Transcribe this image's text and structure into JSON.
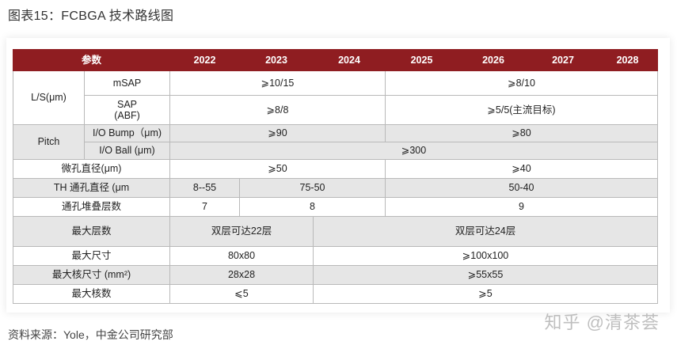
{
  "title": "图表15：FCBGA 技术路线图",
  "header": {
    "param": "参数",
    "years": [
      "2022",
      "2023",
      "2024",
      "2025",
      "2026",
      "2027",
      "2028"
    ]
  },
  "rows": {
    "ls": {
      "label": "L/S(μm)",
      "msap": {
        "label": "mSAP",
        "v1": "⩾10/15",
        "v2": "⩾8/10"
      },
      "sap": {
        "label_line1": "SAP",
        "label_line2": "(ABF)",
        "v1": "⩾8/8",
        "v2": "⩾5/5(主流目标)"
      }
    },
    "pitch": {
      "label": "Pitch",
      "bump": {
        "label": "I/O Bump（μm)",
        "v1": "⩾90",
        "v2": "⩾80"
      },
      "ball": {
        "label": "I/O Ball (μm)",
        "v": "⩾300"
      }
    },
    "micro_hole": {
      "label": "微孔直径(μm)",
      "v1": "⩾50",
      "v2": "⩾40"
    },
    "th_hole": {
      "label": "TH 通孔直径 (μm",
      "v1": "8--55",
      "v2": "75-50",
      "v3": "50-40"
    },
    "stack": {
      "label": "通孔堆叠层数",
      "v1": "7",
      "v2": "8",
      "v3": "9"
    },
    "max_layers": {
      "label": "最大层数",
      "v1": "双层可达22层",
      "v2": "双层可达24层"
    },
    "max_size": {
      "label": "最大尺寸",
      "v1": "80x80",
      "v2": "⩾100x100"
    },
    "max_core_size": {
      "label": "最大核尺寸 (mm²)",
      "v1": "28x28",
      "v2": "⩾55x55"
    },
    "max_cores": {
      "label": "最大核数",
      "v1": "⩽5",
      "v2": "⩾5"
    }
  },
  "source": "资料来源：Yole，中金公司研究部",
  "watermark": "知乎 @清茶荟"
}
